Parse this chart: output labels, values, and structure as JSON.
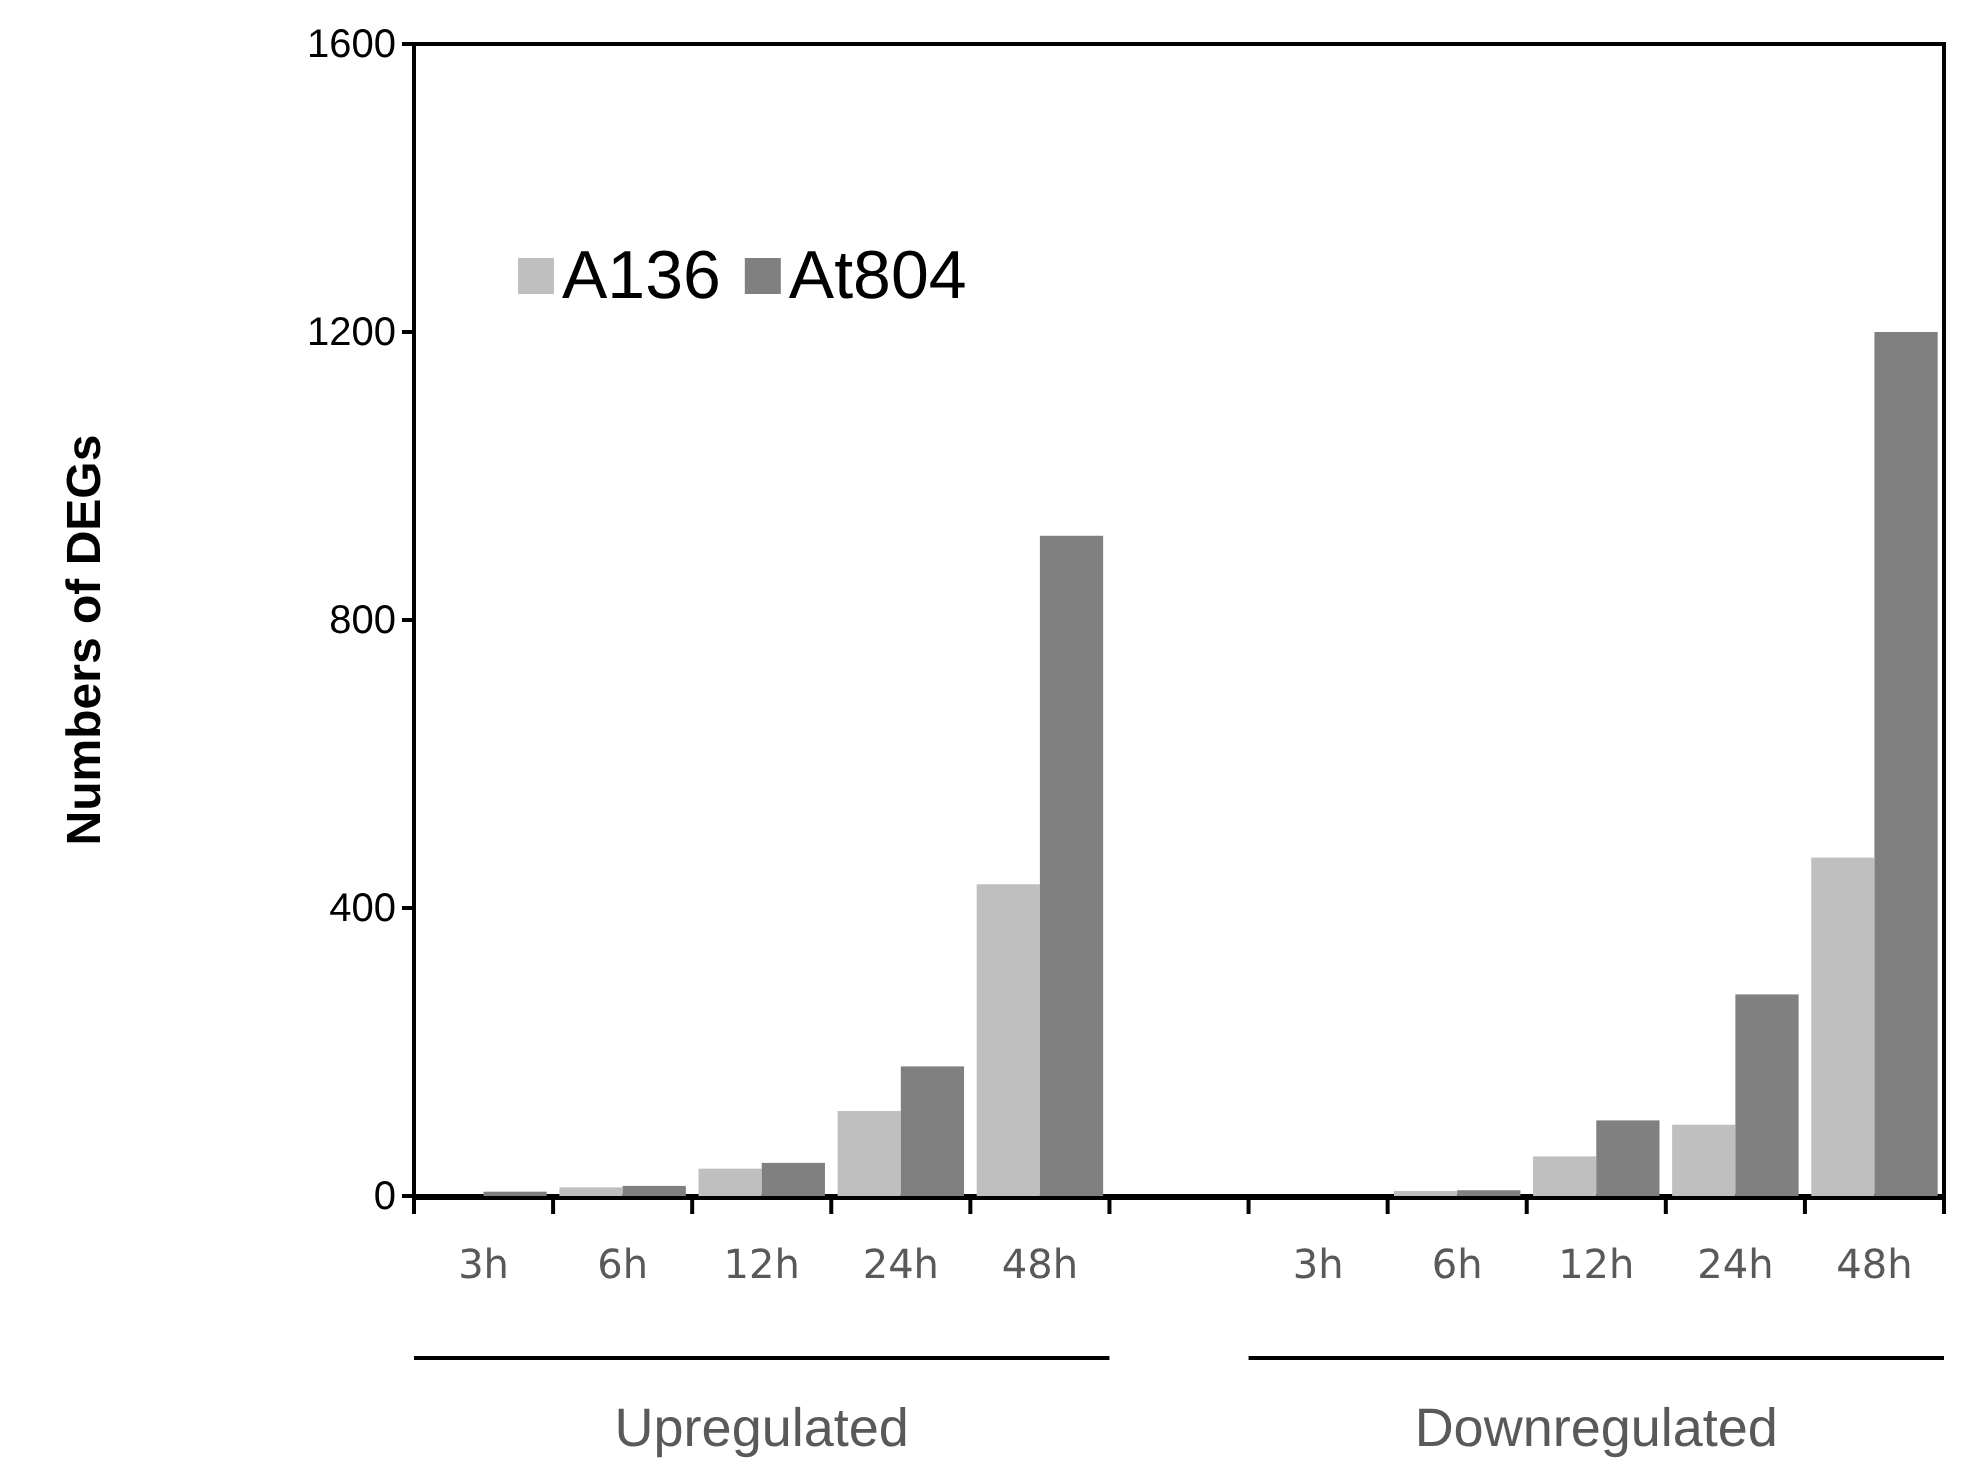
{
  "chart_data": {
    "type": "bar",
    "ylabel": "Numbers of DEGs",
    "categories": [
      "3h",
      "6h",
      "12h",
      "24h",
      "48h",
      null,
      "3h",
      "6h",
      "12h",
      "24h",
      "48h"
    ],
    "series": [
      {
        "name": "A136",
        "color": "#bfbfbf",
        "values": [
          null,
          12,
          38,
          118,
          433,
          null,
          0,
          7,
          55,
          99,
          470
        ]
      },
      {
        "name": "At804",
        "color": "#808080",
        "values": [
          6,
          14,
          46,
          180,
          917,
          null,
          0,
          8,
          105,
          280,
          1200
        ]
      }
    ],
    "ylim": [
      0,
      1600
    ],
    "yticks": [
      0,
      400,
      800,
      1200,
      1600
    ],
    "grid": false,
    "legend": "top left",
    "annotations": [
      "Upregulated",
      "Downregulated"
    ]
  }
}
